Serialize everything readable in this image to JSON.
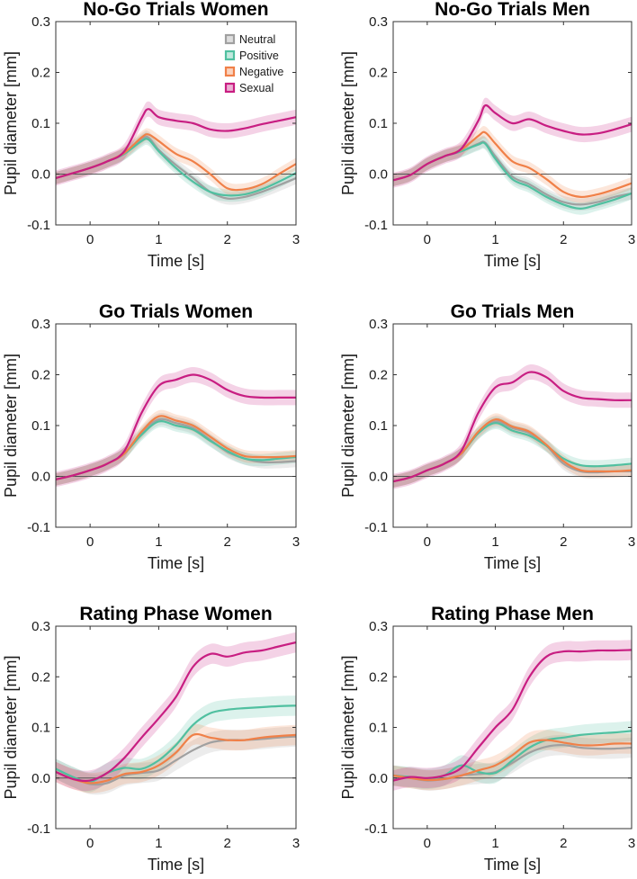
{
  "colors": {
    "neutral": "#a0a0a0",
    "positive": "#50c0a0",
    "negative": "#f08048",
    "sexual": "#c81e82",
    "axis": "#333333",
    "zeroline": "#555555"
  },
  "legend": [
    {
      "key": "neutral",
      "label": "Neutral"
    },
    {
      "key": "positive",
      "label": "Positive"
    },
    {
      "key": "negative",
      "label": "Negative"
    },
    {
      "key": "sexual",
      "label": "Sexual"
    }
  ],
  "chart_data": [
    {
      "type": "line",
      "title": "No-Go Trials Women",
      "xlabel": "Time [s]",
      "ylabel": "Pupil diameter [mm]",
      "xlim": [
        -0.5,
        3
      ],
      "ylim": [
        -0.1,
        0.3
      ],
      "xticks": [
        "0",
        "1",
        "2",
        "3"
      ],
      "yticks": [
        "-0.1",
        "0.0",
        "0.1",
        "0.2",
        "0.3"
      ],
      "legend_position": "top-right",
      "x": [
        -0.5,
        -0.25,
        0,
        0.25,
        0.5,
        0.75,
        0.85,
        1,
        1.25,
        1.5,
        1.75,
        2,
        2.25,
        2.5,
        2.75,
        3
      ],
      "series": [
        {
          "key": "neutral",
          "name": "Neutral",
          "band": 0.012,
          "values": [
            -0.008,
            0.002,
            0.012,
            0.025,
            0.04,
            0.068,
            0.072,
            0.048,
            0.018,
            -0.008,
            -0.035,
            -0.048,
            -0.045,
            -0.035,
            -0.022,
            -0.008
          ]
        },
        {
          "key": "positive",
          "name": "Positive",
          "band": 0.012,
          "values": [
            -0.008,
            0.002,
            0.012,
            0.025,
            0.04,
            0.065,
            0.068,
            0.045,
            0.012,
            -0.015,
            -0.035,
            -0.042,
            -0.04,
            -0.03,
            -0.015,
            0.002
          ]
        },
        {
          "key": "negative",
          "name": "Negative",
          "band": 0.012,
          "values": [
            -0.008,
            0.002,
            0.012,
            0.025,
            0.042,
            0.072,
            0.078,
            0.065,
            0.04,
            0.025,
            0.0,
            -0.028,
            -0.03,
            -0.02,
            0.0,
            0.02
          ]
        },
        {
          "key": "sexual",
          "name": "Sexual",
          "band": 0.015,
          "values": [
            -0.008,
            0.002,
            0.012,
            0.025,
            0.045,
            0.11,
            0.128,
            0.112,
            0.105,
            0.1,
            0.088,
            0.085,
            0.09,
            0.098,
            0.105,
            0.112
          ]
        }
      ]
    },
    {
      "type": "line",
      "title": "No-Go Trials Men",
      "xlabel": "Time [s]",
      "ylabel": "Pupil diameter [mm]",
      "xlim": [
        -0.5,
        3
      ],
      "ylim": [
        -0.1,
        0.3
      ],
      "xticks": [
        "0",
        "1",
        "2",
        "3"
      ],
      "yticks": [
        "-0.1",
        "0.0",
        "0.1",
        "0.2",
        "0.3"
      ],
      "x": [
        -0.5,
        -0.25,
        0,
        0.25,
        0.5,
        0.75,
        0.85,
        1,
        1.25,
        1.5,
        1.75,
        2,
        2.25,
        2.5,
        2.75,
        3
      ],
      "series": [
        {
          "key": "neutral",
          "name": "Neutral",
          "band": 0.012,
          "values": [
            -0.012,
            -0.002,
            0.02,
            0.035,
            0.045,
            0.06,
            0.062,
            0.035,
            -0.005,
            -0.02,
            -0.04,
            -0.055,
            -0.06,
            -0.055,
            -0.045,
            -0.038
          ]
        },
        {
          "key": "positive",
          "name": "Positive",
          "band": 0.012,
          "values": [
            -0.012,
            -0.002,
            0.02,
            0.035,
            0.045,
            0.058,
            0.06,
            0.03,
            -0.01,
            -0.025,
            -0.045,
            -0.06,
            -0.068,
            -0.06,
            -0.05,
            -0.038
          ]
        },
        {
          "key": "negative",
          "name": "Negative",
          "band": 0.012,
          "values": [
            -0.012,
            -0.002,
            0.02,
            0.035,
            0.048,
            0.075,
            0.082,
            0.06,
            0.025,
            0.012,
            -0.01,
            -0.035,
            -0.045,
            -0.04,
            -0.03,
            -0.018
          ]
        },
        {
          "key": "sexual",
          "name": "Sexual",
          "band": 0.015,
          "values": [
            -0.012,
            -0.002,
            0.02,
            0.035,
            0.05,
            0.105,
            0.135,
            0.12,
            0.1,
            0.108,
            0.095,
            0.085,
            0.078,
            0.08,
            0.088,
            0.098
          ]
        }
      ]
    },
    {
      "type": "line",
      "title": "Go Trials Women",
      "xlabel": "Time [s]",
      "ylabel": "Pupil diameter [mm]",
      "xlim": [
        -0.5,
        3
      ],
      "ylim": [
        -0.1,
        0.3
      ],
      "xticks": [
        "0",
        "1",
        "2",
        "3"
      ],
      "yticks": [
        "-0.1",
        "0.0",
        "0.1",
        "0.2",
        "0.3"
      ],
      "x": [
        -0.5,
        -0.25,
        0,
        0.25,
        0.5,
        0.75,
        1,
        1.25,
        1.5,
        1.75,
        2,
        2.25,
        2.5,
        2.75,
        3
      ],
      "series": [
        {
          "key": "neutral",
          "name": "Neutral",
          "band": 0.012,
          "values": [
            -0.006,
            0.002,
            0.012,
            0.025,
            0.045,
            0.085,
            0.112,
            0.105,
            0.095,
            0.072,
            0.048,
            0.035,
            0.028,
            0.028,
            0.03
          ]
        },
        {
          "key": "positive",
          "name": "Positive",
          "band": 0.012,
          "values": [
            -0.006,
            0.002,
            0.012,
            0.025,
            0.045,
            0.082,
            0.108,
            0.1,
            0.092,
            0.07,
            0.05,
            0.035,
            0.032,
            0.035,
            0.038
          ]
        },
        {
          "key": "negative",
          "name": "Negative",
          "band": 0.012,
          "values": [
            -0.006,
            0.002,
            0.012,
            0.025,
            0.045,
            0.088,
            0.118,
            0.11,
            0.1,
            0.078,
            0.055,
            0.04,
            0.038,
            0.038,
            0.04
          ]
        },
        {
          "key": "sexual",
          "name": "Sexual",
          "band": 0.015,
          "values": [
            -0.006,
            0.002,
            0.012,
            0.025,
            0.05,
            0.125,
            0.178,
            0.19,
            0.2,
            0.19,
            0.17,
            0.158,
            0.155,
            0.155,
            0.155
          ]
        }
      ]
    },
    {
      "type": "line",
      "title": "Go Trials Men",
      "xlabel": "Time [s]",
      "ylabel": "Pupil diameter [mm]",
      "xlim": [
        -0.5,
        3
      ],
      "ylim": [
        -0.1,
        0.3
      ],
      "xticks": [
        "0",
        "1",
        "2",
        "3"
      ],
      "yticks": [
        "-0.1",
        "0.0",
        "0.1",
        "0.2",
        "0.3"
      ],
      "x": [
        -0.5,
        -0.25,
        0,
        0.25,
        0.5,
        0.75,
        1,
        1.25,
        1.5,
        1.75,
        2,
        2.25,
        2.5,
        2.75,
        3
      ],
      "series": [
        {
          "key": "neutral",
          "name": "Neutral",
          "band": 0.012,
          "values": [
            -0.01,
            -0.002,
            0.012,
            0.025,
            0.045,
            0.085,
            0.108,
            0.095,
            0.085,
            0.06,
            0.025,
            0.01,
            0.008,
            0.01,
            0.01
          ]
        },
        {
          "key": "positive",
          "name": "Positive",
          "band": 0.012,
          "values": [
            -0.01,
            -0.002,
            0.012,
            0.025,
            0.045,
            0.085,
            0.105,
            0.09,
            0.08,
            0.06,
            0.035,
            0.022,
            0.02,
            0.022,
            0.025
          ]
        },
        {
          "key": "negative",
          "name": "Negative",
          "band": 0.012,
          "values": [
            -0.01,
            -0.002,
            0.012,
            0.025,
            0.045,
            0.088,
            0.112,
            0.098,
            0.088,
            0.062,
            0.03,
            0.012,
            0.01,
            0.01,
            0.012
          ]
        },
        {
          "key": "sexual",
          "name": "Sexual",
          "band": 0.015,
          "values": [
            -0.01,
            -0.002,
            0.012,
            0.025,
            0.05,
            0.125,
            0.175,
            0.185,
            0.205,
            0.195,
            0.168,
            0.155,
            0.152,
            0.15,
            0.15
          ]
        }
      ]
    },
    {
      "type": "line",
      "title": "Rating Phase Women",
      "xlabel": "Time [s]",
      "ylabel": "Pupil diameter [mm]",
      "xlim": [
        -0.5,
        3
      ],
      "ylim": [
        -0.1,
        0.3
      ],
      "xticks": [
        "0",
        "1",
        "2",
        "3"
      ],
      "yticks": [
        "-0.1",
        "0.0",
        "0.1",
        "0.2",
        "0.3"
      ],
      "x": [
        -0.5,
        -0.25,
        0,
        0.25,
        0.5,
        0.75,
        1,
        1.25,
        1.5,
        1.75,
        2,
        2.25,
        2.5,
        2.75,
        3
      ],
      "series": [
        {
          "key": "neutral",
          "name": "Neutral",
          "band": 0.02,
          "values": [
            0.018,
            0.002,
            -0.012,
            -0.01,
            0.005,
            0.01,
            0.015,
            0.035,
            0.055,
            0.07,
            0.075,
            0.075,
            0.077,
            0.08,
            0.082
          ]
        },
        {
          "key": "positive",
          "name": "Positive",
          "band": 0.02,
          "values": [
            0.018,
            0.002,
            -0.008,
            0.01,
            0.02,
            0.018,
            0.035,
            0.065,
            0.105,
            0.128,
            0.135,
            0.138,
            0.14,
            0.142,
            0.143
          ]
        },
        {
          "key": "negative",
          "name": "Negative",
          "band": 0.02,
          "values": [
            0.012,
            -0.002,
            -0.01,
            -0.005,
            0.008,
            0.012,
            0.025,
            0.05,
            0.085,
            0.08,
            0.075,
            0.075,
            0.08,
            0.083,
            0.085
          ]
        },
        {
          "key": "sexual",
          "name": "Sexual",
          "band": 0.02,
          "values": [
            0.012,
            -0.002,
            -0.005,
            0.01,
            0.04,
            0.08,
            0.118,
            0.16,
            0.22,
            0.245,
            0.24,
            0.248,
            0.252,
            0.26,
            0.268
          ]
        }
      ]
    },
    {
      "type": "line",
      "title": "Rating Phase Men",
      "xlabel": "Time [s]",
      "ylabel": "Pupil diameter [mm]",
      "xlim": [
        -0.5,
        3
      ],
      "ylim": [
        -0.1,
        0.3
      ],
      "xticks": [
        "0",
        "1",
        "2",
        "3"
      ],
      "yticks": [
        "-0.1",
        "0.0",
        "0.1",
        "0.2",
        "0.3"
      ],
      "x": [
        -0.5,
        -0.25,
        0,
        0.25,
        0.5,
        0.75,
        1,
        1.25,
        1.5,
        1.75,
        2,
        2.25,
        2.5,
        2.75,
        3
      ],
      "series": [
        {
          "key": "neutral",
          "name": "Neutral",
          "band": 0.02,
          "values": [
            0.005,
            0.0,
            -0.005,
            -0.002,
            0.005,
            0.008,
            0.012,
            0.03,
            0.05,
            0.062,
            0.065,
            0.06,
            0.058,
            0.058,
            0.06
          ]
        },
        {
          "key": "positive",
          "name": "Positive",
          "band": 0.02,
          "values": [
            0.005,
            0.002,
            -0.002,
            0.005,
            0.025,
            0.012,
            0.01,
            0.035,
            0.06,
            0.075,
            0.08,
            0.085,
            0.088,
            0.09,
            0.093
          ]
        },
        {
          "key": "negative",
          "name": "Negative",
          "band": 0.02,
          "values": [
            0.005,
            0.0,
            -0.004,
            -0.002,
            0.005,
            0.015,
            0.025,
            0.045,
            0.07,
            0.075,
            0.07,
            0.065,
            0.065,
            0.068,
            0.068
          ]
        },
        {
          "key": "sexual",
          "name": "Sexual",
          "band": 0.02,
          "values": [
            -0.005,
            0.002,
            0.0,
            0.005,
            0.02,
            0.06,
            0.1,
            0.135,
            0.2,
            0.24,
            0.25,
            0.25,
            0.252,
            0.252,
            0.253
          ]
        }
      ]
    }
  ]
}
